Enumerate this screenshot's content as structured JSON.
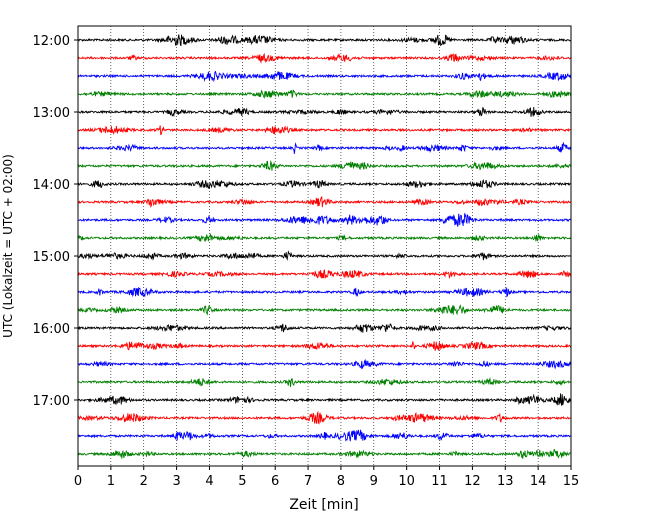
{
  "chart_data": {
    "type": "line",
    "title": "",
    "xlabel": "Zeit  [min]",
    "ylabel": "UTC (Lokalzeit = UTC + 02:00)",
    "xlim": [
      0,
      15
    ],
    "x_ticks": [
      0,
      1,
      2,
      3,
      4,
      5,
      6,
      7,
      8,
      9,
      10,
      11,
      12,
      13,
      14,
      15
    ],
    "x_grid": "dotted vertical at each minute",
    "y_ticks": [
      "12:00",
      "13:00",
      "14:00",
      "15:00",
      "16:00",
      "17:00"
    ],
    "trace_interval_minutes": 15,
    "trace_start": "12:00",
    "trace_count": 24,
    "colors_cycle": [
      "#000000",
      "#ff0000",
      "#0000ff",
      "#008000"
    ],
    "events": [
      {
        "trace_start": "13:30",
        "minute": 6.6,
        "amplitude": "spike"
      },
      {
        "trace_start": "16:15",
        "minute": 10.2,
        "amplitude": "spike"
      }
    ]
  }
}
